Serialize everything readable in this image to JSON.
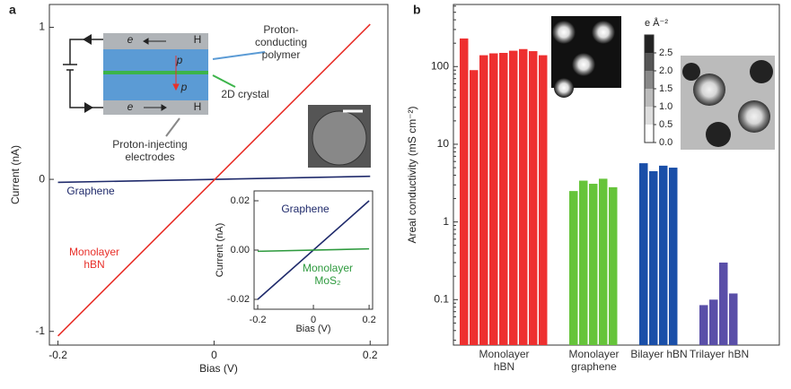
{
  "chart_data": [
    {
      "type": "line",
      "panel": "a",
      "x": [
        -0.2,
        0.2
      ],
      "xlim": [
        -0.211,
        0.2227
      ],
      "ylim": [
        -1.09,
        1.15
      ],
      "xticks": [
        -0.2,
        0,
        0.2
      ],
      "yticks": [
        -1,
        0,
        1
      ],
      "xlabel": "Bias (V)",
      "ylabel": "Current (nA)",
      "series": [
        {
          "name": "Graphene",
          "color": "#1f2a6b",
          "values": [
            -0.02,
            0.02
          ]
        },
        {
          "name": "Monolayer hBN",
          "color": "#e8302a",
          "values": [
            -1.03,
            1.02
          ]
        }
      ],
      "annotations": [
        "Proton-conducting polymer",
        "2D crystal",
        "Proton-injecting electrodes"
      ],
      "diagram_labels": [
        "e",
        "H",
        "p",
        "p",
        "e",
        "H"
      ]
    },
    {
      "type": "line",
      "x": [
        -0.2,
        0.2
      ],
      "xlim": [
        -0.213,
        0.2126
      ],
      "ylim": [
        -0.024,
        0.024
      ],
      "xticks": [
        -0.2,
        0,
        0.2
      ],
      "yticks": [
        -0.02,
        {
          "value": 0,
          "label": "0.00"
        },
        0.02
      ],
      "xlabel": "Bias (V)",
      "ylabel": "Current (nA)",
      "series": [
        {
          "name": "Graphene",
          "color": "#1f2a6b",
          "values": [
            -0.02,
            0.02
          ]
        },
        {
          "name": "Monolayer MoS₂",
          "color": "#2e9a3e",
          "values": [
            -0.0005,
            0.0005
          ]
        }
      ]
    },
    {
      "type": "bar",
      "panel": "b",
      "log": true,
      "ylim": [
        0.026,
        630
      ],
      "yticks": [
        0.1,
        1,
        10,
        100
      ],
      "ylabel": "Areal conductivity (mS cm⁻²)",
      "series": [
        {
          "name": "Monolayer hBN",
          "color": "#ee3030",
          "values": [
            230,
            90,
            140,
            148,
            150,
            160,
            168,
            158,
            140
          ]
        },
        {
          "name": "Monolayer graphene",
          "color": "#66c43a",
          "values": [
            2.5,
            3.4,
            3.1,
            3.6,
            2.8
          ]
        },
        {
          "name": "Bilayer hBN",
          "color": "#1a4fa8",
          "values": [
            5.7,
            4.5,
            5.3,
            5.0
          ]
        },
        {
          "name": "Trilayer hBN",
          "color": "#5a4fa8",
          "values": [
            0.085,
            0.1,
            0.3,
            0.12
          ]
        }
      ],
      "colorbar": {
        "label": "e Å⁻²",
        "lim": [
          0,
          3
        ],
        "ticks": [
          {
            "value": 0,
            "label": "0.0"
          },
          0.5,
          {
            "value": 1,
            "label": "1.0"
          },
          1.5,
          {
            "value": 2,
            "label": "2.0"
          },
          2.5
        ]
      }
    }
  ]
}
